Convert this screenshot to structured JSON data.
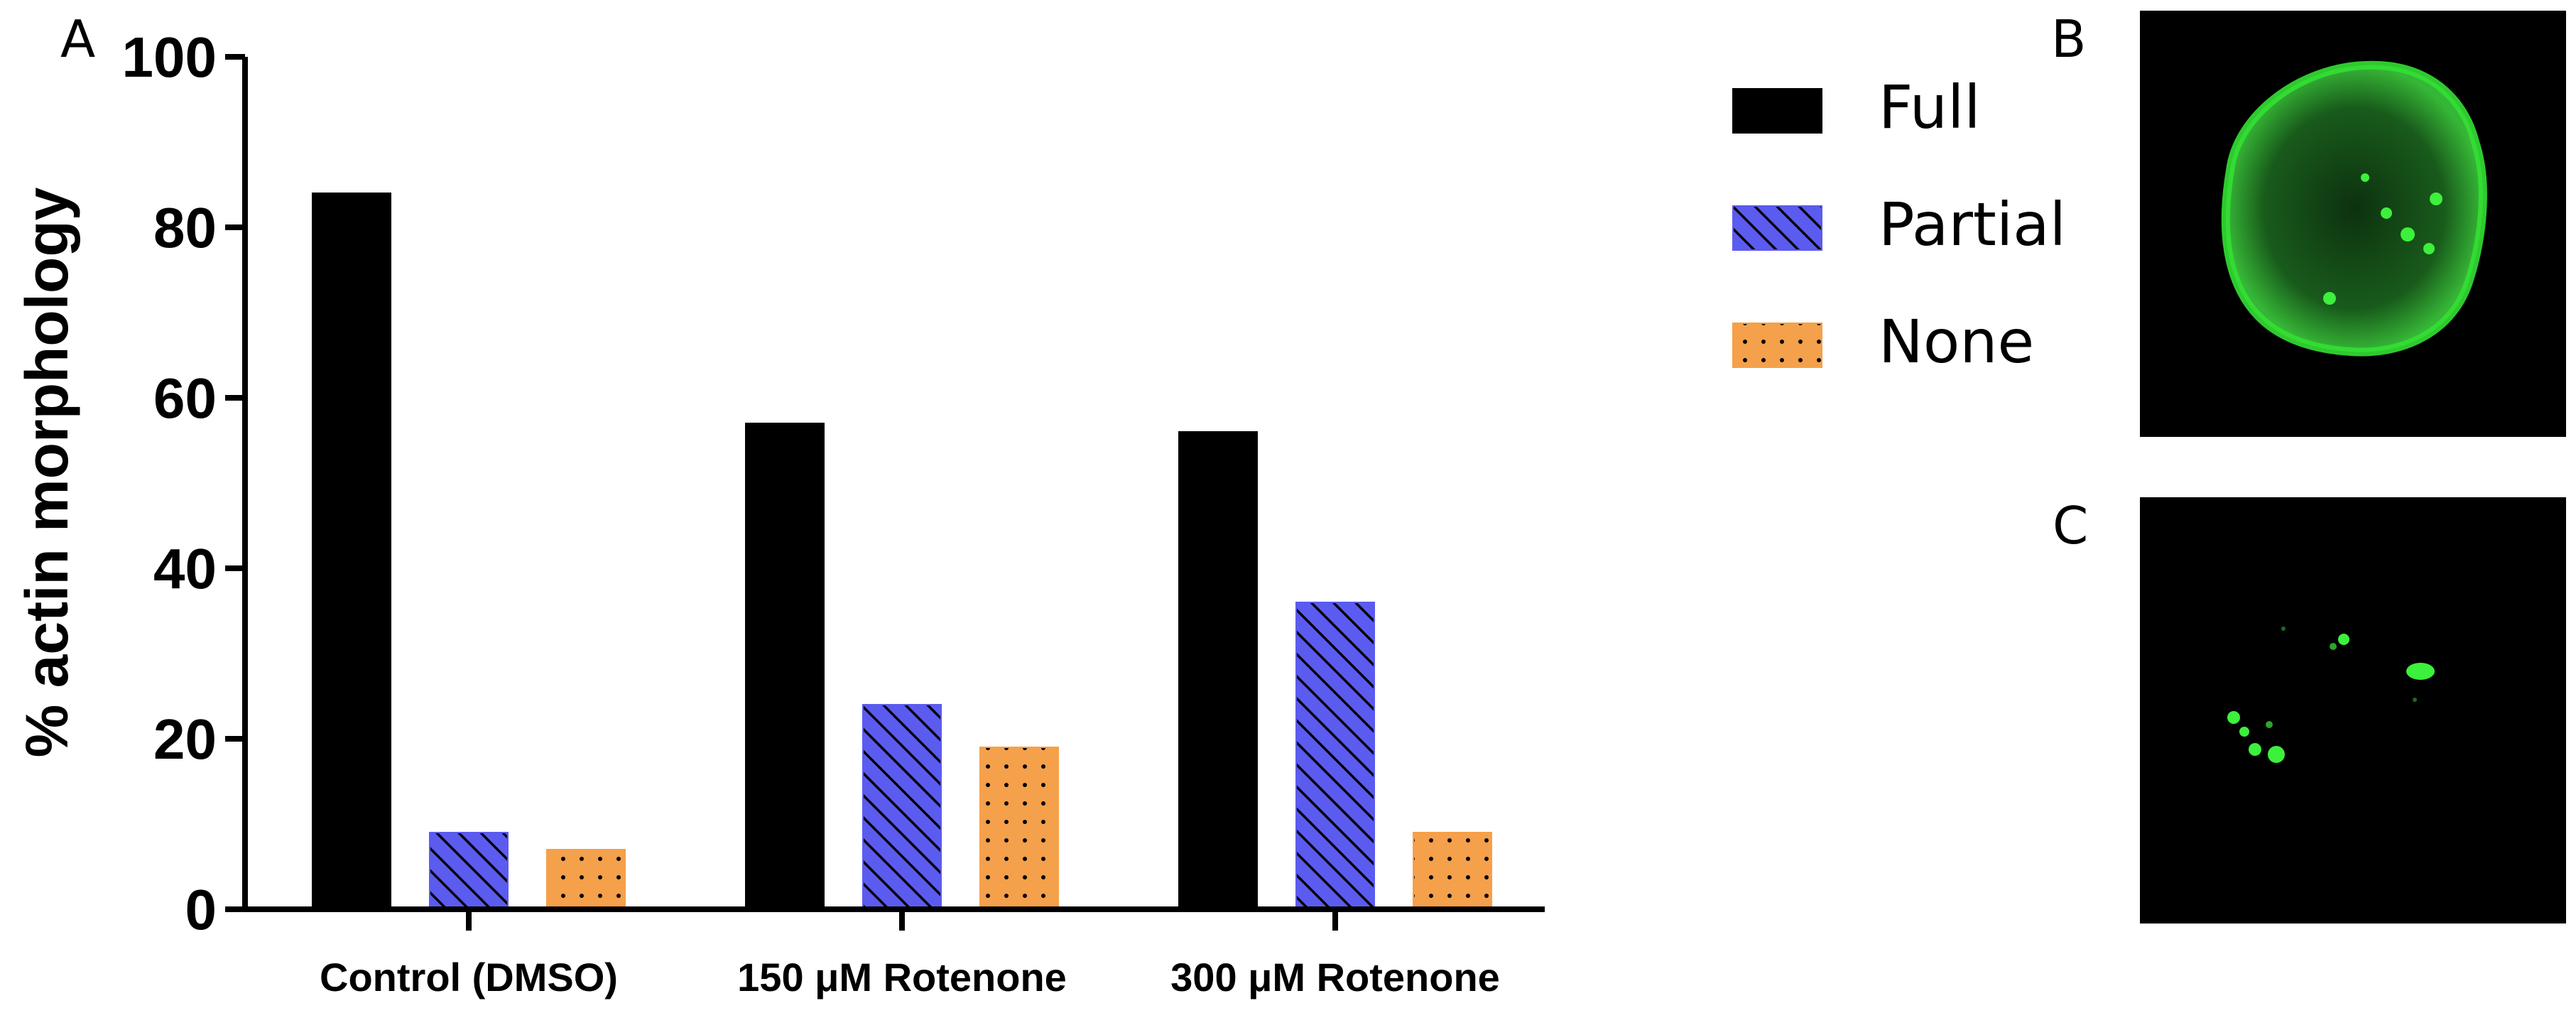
{
  "panels": {
    "a": "A",
    "b": "B",
    "c": "C"
  },
  "colors": {
    "full": "#000000",
    "partial": "#5b5bf0",
    "none": "#f5a04a"
  },
  "chart_data": {
    "type": "bar",
    "categories": [
      "Control (DMSO)",
      "150 μM Rotenone",
      "300 μM Rotenone"
    ],
    "series": [
      {
        "name": "Full",
        "values": [
          84,
          57,
          56
        ],
        "pattern": "solid"
      },
      {
        "name": "Partial",
        "values": [
          9,
          24,
          36
        ],
        "pattern": "diagonal-hatch"
      },
      {
        "name": "None",
        "values": [
          7,
          19,
          9
        ],
        "pattern": "dots"
      }
    ],
    "title": "",
    "xlabel": "",
    "ylabel": "% actin morphology",
    "ylim": [
      0,
      100
    ],
    "yticks": [
      0,
      20,
      40,
      60,
      80,
      100
    ],
    "grid": false,
    "legend_position": "right"
  },
  "micrographs": {
    "b": {
      "description_icon": "cell-full-actin-image"
    },
    "c": {
      "description_icon": "cell-punctate-actin-image"
    }
  }
}
